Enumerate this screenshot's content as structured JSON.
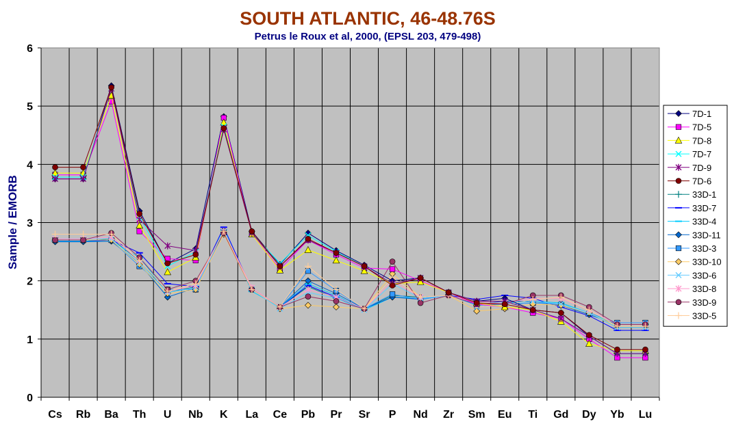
{
  "chart_data": {
    "type": "line",
    "title": "SOUTH ATLANTIC, 46-48.76S",
    "subtitle": "Petrus le Roux et al, 2000, (EPSL 203, 479-498)",
    "xlabel": "",
    "ylabel": "Sample / EMORB",
    "ylim": [
      0,
      6
    ],
    "yticks": [
      0,
      1,
      2,
      3,
      4,
      5,
      6
    ],
    "grid": true,
    "legend": "right",
    "categories": [
      "Cs",
      "Rb",
      "Ba",
      "Th",
      "U",
      "Nb",
      "K",
      "La",
      "Ce",
      "Pb",
      "Pr",
      "Sr",
      "P",
      "Nd",
      "Zr",
      "Sm",
      "Eu",
      "Ti",
      "Gd",
      "Dy",
      "Yb",
      "Lu"
    ],
    "series": [
      {
        "name": "7D-1",
        "color": "#000080",
        "marker": "diamond",
        "values": [
          3.75,
          3.75,
          5.35,
          3.2,
          2.3,
          2.55,
          4.82,
          2.85,
          2.28,
          2.82,
          2.52,
          2.27,
          2.0,
          2.05,
          1.8,
          1.65,
          1.7,
          1.5,
          1.45,
          1.05,
          0.75,
          0.75
        ]
      },
      {
        "name": "7D-5",
        "color": "#FF00FF",
        "marker": "square",
        "values": [
          3.82,
          3.82,
          5.08,
          2.85,
          2.38,
          2.35,
          4.8,
          2.8,
          2.2,
          2.7,
          2.45,
          2.22,
          2.2,
          2.0,
          1.8,
          1.6,
          1.55,
          1.45,
          1.35,
          1.0,
          0.68,
          0.68
        ]
      },
      {
        "name": "7D-8",
        "color": "#FFFF00",
        "marker": "triangle",
        "values": [
          3.85,
          3.85,
          5.18,
          2.95,
          2.15,
          2.4,
          4.72,
          2.8,
          2.18,
          2.53,
          2.35,
          2.17,
          1.95,
          1.98,
          1.8,
          1.62,
          1.55,
          1.5,
          1.3,
          0.92,
          0.8,
          0.8
        ]
      },
      {
        "name": "7D-7",
        "color": "#00FFFF",
        "marker": "x",
        "values": [
          3.78,
          3.78,
          5.3,
          3.1,
          2.25,
          2.5,
          4.65,
          2.82,
          2.3,
          2.78,
          2.5,
          2.25,
          1.95,
          2.05,
          1.8,
          1.65,
          1.65,
          1.5,
          1.35,
          1.05,
          0.75,
          0.75
        ]
      },
      {
        "name": "7D-9",
        "color": "#800080",
        "marker": "star",
        "values": [
          3.75,
          3.75,
          5.3,
          3.05,
          2.6,
          2.52,
          4.6,
          2.82,
          2.25,
          2.7,
          2.48,
          2.25,
          1.95,
          2.05,
          1.8,
          1.65,
          1.65,
          1.5,
          1.35,
          1.05,
          0.75,
          0.75
        ]
      },
      {
        "name": "7D-6",
        "color": "#800000",
        "marker": "circle",
        "values": [
          3.95,
          3.95,
          5.32,
          3.15,
          2.3,
          2.45,
          4.62,
          2.85,
          2.25,
          2.72,
          2.48,
          2.25,
          1.92,
          2.05,
          1.8,
          1.62,
          1.6,
          1.5,
          1.45,
          1.07,
          0.82,
          0.82
        ]
      },
      {
        "name": "33D-1",
        "color": "#008080",
        "marker": "plus",
        "values": [
          2.68,
          2.68,
          2.72,
          2.35,
          1.8,
          1.9,
          2.85,
          1.85,
          1.55,
          1.9,
          1.7,
          1.52,
          1.75,
          1.72,
          1.75,
          1.55,
          1.6,
          1.62,
          1.6,
          1.45,
          1.2,
          1.2
        ]
      },
      {
        "name": "33D-7",
        "color": "#0000FF",
        "marker": "dash",
        "values": [
          2.68,
          2.68,
          2.7,
          2.48,
          1.95,
          1.9,
          2.92,
          1.85,
          1.55,
          1.92,
          1.72,
          1.52,
          1.72,
          1.7,
          1.75,
          1.68,
          1.75,
          1.7,
          1.55,
          1.4,
          1.15,
          1.15
        ]
      },
      {
        "name": "33D-4",
        "color": "#00CCFF",
        "marker": "dash",
        "values": [
          2.68,
          2.68,
          2.68,
          2.4,
          1.8,
          1.88,
          2.88,
          1.82,
          1.55,
          1.95,
          1.75,
          1.5,
          1.72,
          1.7,
          1.75,
          1.6,
          1.62,
          1.65,
          1.62,
          1.45,
          1.25,
          1.25
        ]
      },
      {
        "name": "33D-11",
        "color": "#0066CC",
        "marker": "diamond",
        "values": [
          2.67,
          2.67,
          2.68,
          2.3,
          1.72,
          1.88,
          2.83,
          1.85,
          1.55,
          2.0,
          1.78,
          1.52,
          1.72,
          1.68,
          1.75,
          1.6,
          1.65,
          1.65,
          1.58,
          1.42,
          1.25,
          1.25
        ]
      },
      {
        "name": "33D-3",
        "color": "#3399FF",
        "marker": "square",
        "values": [
          2.7,
          2.7,
          2.7,
          2.25,
          1.85,
          1.85,
          2.85,
          1.85,
          1.55,
          2.17,
          1.83,
          1.52,
          1.77,
          1.68,
          1.75,
          1.58,
          1.6,
          1.62,
          1.6,
          1.45,
          1.28,
          1.28
        ]
      },
      {
        "name": "33D-10",
        "color": "#FFCC66",
        "marker": "diamond",
        "values": [
          2.7,
          2.7,
          2.7,
          2.28,
          1.78,
          1.85,
          2.8,
          1.85,
          1.52,
          1.58,
          1.55,
          1.52,
          2.12,
          1.72,
          1.75,
          1.48,
          1.52,
          1.6,
          1.58,
          1.45,
          1.22,
          1.22
        ]
      },
      {
        "name": "33D-6",
        "color": "#66CCFF",
        "marker": "x",
        "values": [
          2.72,
          2.72,
          2.72,
          2.3,
          1.8,
          1.88,
          2.85,
          1.85,
          1.52,
          1.8,
          1.7,
          1.5,
          1.95,
          1.7,
          1.75,
          1.55,
          1.6,
          1.65,
          1.6,
          1.45,
          1.2,
          1.2
        ]
      },
      {
        "name": "33D-8",
        "color": "#FF99CC",
        "marker": "star",
        "values": [
          2.72,
          2.72,
          2.75,
          2.35,
          1.82,
          1.92,
          2.85,
          1.88,
          1.55,
          1.85,
          1.72,
          1.52,
          2.0,
          1.72,
          1.75,
          1.62,
          1.62,
          1.7,
          1.7,
          1.5,
          1.25,
          1.25
        ]
      },
      {
        "name": "33D-9",
        "color": "#993366",
        "marker": "circle",
        "values": [
          2.7,
          2.7,
          2.82,
          2.4,
          1.85,
          2.0,
          2.82,
          1.85,
          1.55,
          1.73,
          1.65,
          1.52,
          2.33,
          1.62,
          1.75,
          1.6,
          1.6,
          1.75,
          1.75,
          1.55,
          1.25,
          1.25
        ]
      },
      {
        "name": "33D-5",
        "color": "#FFCC99",
        "marker": "plus",
        "values": [
          2.8,
          2.8,
          2.8,
          2.35,
          1.82,
          1.95,
          2.85,
          1.85,
          1.55,
          2.25,
          1.85,
          1.52,
          2.05,
          1.72,
          1.75,
          1.55,
          1.58,
          1.68,
          1.72,
          1.5,
          1.22,
          1.22
        ]
      }
    ]
  }
}
